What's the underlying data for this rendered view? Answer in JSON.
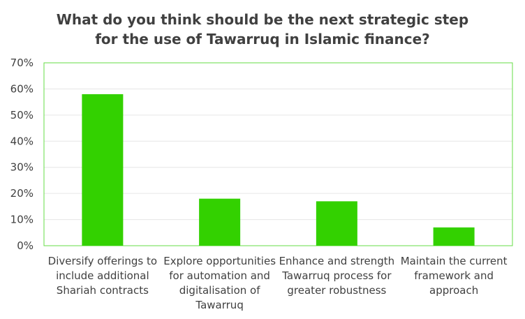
{
  "chart_data": {
    "type": "bar",
    "title_lines": [
      "What do you think should be the next strategic step",
      "for the use of Tawarruq in Islamic finance?"
    ],
    "categories": [
      [
        "Diversify offerings to",
        "include additional",
        "Shariah contracts"
      ],
      [
        "Explore opportunities",
        "for automation and",
        "digitalisation of",
        "Tawarruq"
      ],
      [
        "Enhance and strength",
        "Tawarruq process for",
        "greater robustness"
      ],
      [
        "Maintain the current",
        "framework and",
        "approach"
      ]
    ],
    "values": [
      58,
      18,
      17,
      7
    ],
    "yticks": [
      "0%",
      "10%",
      "20%",
      "30%",
      "40%",
      "50%",
      "60%",
      "70%"
    ],
    "ylim": [
      0,
      70
    ],
    "xlabel": "",
    "ylabel": "",
    "grid": true,
    "colors": {
      "bar": "#33d100",
      "frame": "#66dd44",
      "grid": "#e6e6e6",
      "text": "#404040"
    }
  }
}
